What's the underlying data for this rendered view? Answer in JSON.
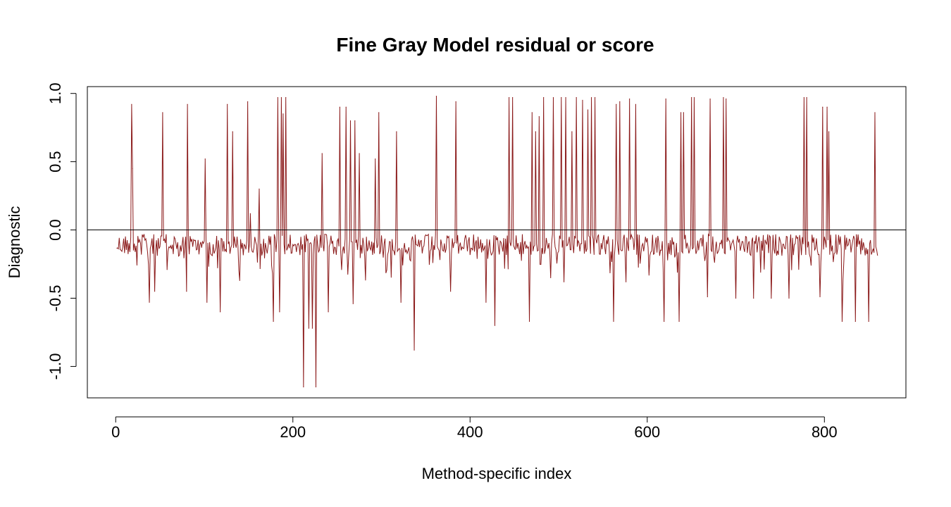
{
  "chart_data": {
    "type": "line",
    "title": "Fine Gray Model residual or score",
    "xlabel": "Method-specific index",
    "ylabel": "Diagnostic",
    "xlim": [
      -32,
      892
    ],
    "ylim": [
      -1.23,
      1.05
    ],
    "xticks": [
      0,
      200,
      400,
      600,
      800
    ],
    "yticks": [
      -1.0,
      -0.5,
      0.0,
      0.5,
      1.0
    ],
    "xtick_labels": [
      "0",
      "200",
      "400",
      "600",
      "800"
    ],
    "ytick_labels": [
      "-1.0",
      "-0.5",
      "0.0",
      "0.5",
      "1.0"
    ],
    "reference_line": 0,
    "grid": false,
    "n_points": 860,
    "x_range": [
      1,
      860
    ],
    "series": [
      {
        "color": "#8b1a1a",
        "spikes": [
          {
            "x": 18,
            "y": 0.92
          },
          {
            "x": 19,
            "y": 0.45
          },
          {
            "x": 38,
            "y": -0.53
          },
          {
            "x": 44,
            "y": -0.45
          },
          {
            "x": 53,
            "y": 0.86
          },
          {
            "x": 58,
            "y": -0.29
          },
          {
            "x": 81,
            "y": 0.92
          },
          {
            "x": 80,
            "y": -0.45
          },
          {
            "x": 101,
            "y": 0.52
          },
          {
            "x": 103,
            "y": -0.53
          },
          {
            "x": 118,
            "y": -0.6
          },
          {
            "x": 126,
            "y": 0.92
          },
          {
            "x": 132,
            "y": 0.72
          },
          {
            "x": 140,
            "y": -0.37
          },
          {
            "x": 149,
            "y": 0.94
          },
          {
            "x": 152,
            "y": 0.12
          },
          {
            "x": 162,
            "y": 0.3
          },
          {
            "x": 178,
            "y": -0.67
          },
          {
            "x": 183,
            "y": 0.97
          },
          {
            "x": 185,
            "y": -0.6
          },
          {
            "x": 187,
            "y": 0.97
          },
          {
            "x": 189,
            "y": 0.85
          },
          {
            "x": 192,
            "y": 0.97
          },
          {
            "x": 212,
            "y": -1.15
          },
          {
            "x": 218,
            "y": -0.72
          },
          {
            "x": 222,
            "y": -0.72
          },
          {
            "x": 226,
            "y": -1.15
          },
          {
            "x": 233,
            "y": 0.56
          },
          {
            "x": 240,
            "y": -0.6
          },
          {
            "x": 253,
            "y": 0.9
          },
          {
            "x": 260,
            "y": 0.9
          },
          {
            "x": 265,
            "y": 0.8
          },
          {
            "x": 268,
            "y": -0.54
          },
          {
            "x": 270,
            "y": 0.8
          },
          {
            "x": 275,
            "y": 0.56
          },
          {
            "x": 293,
            "y": 0.52
          },
          {
            "x": 297,
            "y": 0.86
          },
          {
            "x": 317,
            "y": 0.72
          },
          {
            "x": 322,
            "y": -0.53
          },
          {
            "x": 337,
            "y": -0.88
          },
          {
            "x": 362,
            "y": 0.98
          },
          {
            "x": 378,
            "y": -0.45
          },
          {
            "x": 384,
            "y": 0.94
          },
          {
            "x": 418,
            "y": -0.53
          },
          {
            "x": 428,
            "y": -0.7
          },
          {
            "x": 444,
            "y": 0.97
          },
          {
            "x": 448,
            "y": 0.97
          },
          {
            "x": 467,
            "y": -0.67
          },
          {
            "x": 470,
            "y": 0.86
          },
          {
            "x": 474,
            "y": 0.72
          },
          {
            "x": 478,
            "y": 0.83
          },
          {
            "x": 483,
            "y": 0.97
          },
          {
            "x": 494,
            "y": 0.97
          },
          {
            "x": 503,
            "y": 0.97
          },
          {
            "x": 506,
            "y": -0.38
          },
          {
            "x": 508,
            "y": 0.97
          },
          {
            "x": 515,
            "y": 0.72
          },
          {
            "x": 520,
            "y": 0.97
          },
          {
            "x": 527,
            "y": 0.95
          },
          {
            "x": 533,
            "y": 0.88
          },
          {
            "x": 537,
            "y": 0.97
          },
          {
            "x": 541,
            "y": 0.97
          },
          {
            "x": 562,
            "y": -0.67
          },
          {
            "x": 565,
            "y": 0.92
          },
          {
            "x": 569,
            "y": 0.94
          },
          {
            "x": 576,
            "y": -0.38
          },
          {
            "x": 580,
            "y": 0.96
          },
          {
            "x": 587,
            "y": 0.92
          },
          {
            "x": 619,
            "y": -0.67
          },
          {
            "x": 621,
            "y": 0.96
          },
          {
            "x": 636,
            "y": -0.67
          },
          {
            "x": 638,
            "y": 0.86
          },
          {
            "x": 641,
            "y": 0.86
          },
          {
            "x": 650,
            "y": 0.97
          },
          {
            "x": 653,
            "y": 0.97
          },
          {
            "x": 668,
            "y": -0.49
          },
          {
            "x": 671,
            "y": 0.96
          },
          {
            "x": 686,
            "y": 0.97
          },
          {
            "x": 689,
            "y": 0.96
          },
          {
            "x": 700,
            "y": -0.5
          },
          {
            "x": 720,
            "y": -0.5
          },
          {
            "x": 740,
            "y": -0.5
          },
          {
            "x": 760,
            "y": -0.5
          },
          {
            "x": 777,
            "y": 0.97
          },
          {
            "x": 780,
            "y": 0.97
          },
          {
            "x": 795,
            "y": -0.49
          },
          {
            "x": 798,
            "y": 0.9
          },
          {
            "x": 803,
            "y": 0.9
          },
          {
            "x": 805,
            "y": 0.72
          },
          {
            "x": 820,
            "y": -0.67
          },
          {
            "x": 835,
            "y": -0.67
          },
          {
            "x": 850,
            "y": -0.67
          },
          {
            "x": 857,
            "y": 0.86
          }
        ],
        "baseline_values_note_free": null
      }
    ]
  }
}
